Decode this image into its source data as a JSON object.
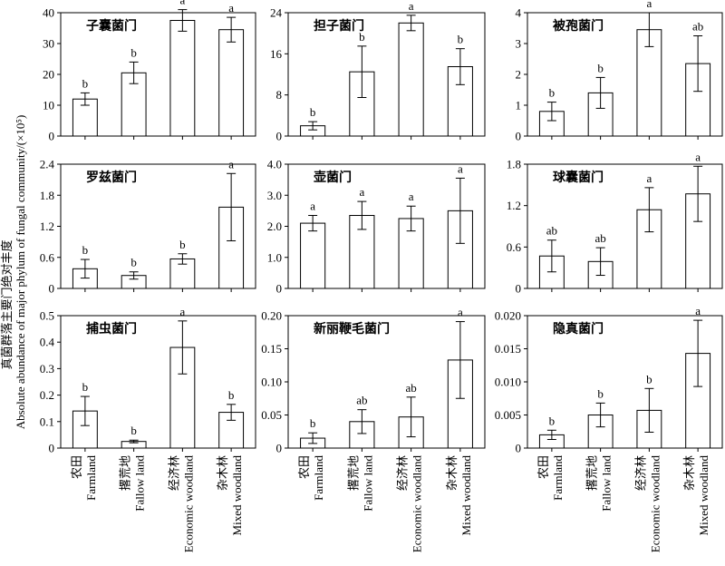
{
  "figure": {
    "ylabel_cn": "真菌群落主要门绝对丰度",
    "ylabel_en": "Absolute abundance of major phylum of fungal community/(×10⁵)",
    "x_categories": [
      {
        "cn": "农田",
        "en": "Farmland"
      },
      {
        "cn": "撂荒地",
        "en": "Fallow land"
      },
      {
        "cn": "经济林",
        "en": "Economic woodland"
      },
      {
        "cn": "杂木林",
        "en": "Mixed woodland"
      }
    ],
    "x_label_columns": [
      0,
      1,
      2
    ]
  },
  "chart_data": [
    {
      "type": "bar",
      "title": "子囊菌门",
      "ylim": [
        0,
        40
      ],
      "ticks": [
        "0",
        "10",
        "20",
        "30",
        "40"
      ],
      "values": [
        12,
        20.5,
        37.5,
        34.5
      ],
      "errors": [
        2,
        3.5,
        3.5,
        4
      ],
      "letters": [
        "b",
        "b",
        "a",
        "a"
      ]
    },
    {
      "type": "bar",
      "title": "担子菌门",
      "ylim": [
        0,
        24
      ],
      "ticks": [
        "0",
        "8",
        "16",
        "24"
      ],
      "values": [
        2,
        12.5,
        22,
        13.5
      ],
      "errors": [
        0.8,
        5,
        1.5,
        3.5
      ],
      "letters": [
        "b",
        "b",
        "a",
        "b"
      ]
    },
    {
      "type": "bar",
      "title": "被孢菌门",
      "ylim": [
        0,
        4
      ],
      "ticks": [
        "0",
        "1",
        "2",
        "3",
        "4"
      ],
      "values": [
        0.8,
        1.4,
        3.45,
        2.35
      ],
      "errors": [
        0.3,
        0.5,
        0.55,
        0.9
      ],
      "letters": [
        "b",
        "b",
        "a",
        "ab"
      ]
    },
    {
      "type": "bar",
      "title": "罗兹菌门",
      "ylim": [
        0,
        2.4
      ],
      "ticks": [
        "0",
        "0.6",
        "1.2",
        "1.8",
        "2.4"
      ],
      "values": [
        0.38,
        0.25,
        0.57,
        1.57
      ],
      "errors": [
        0.18,
        0.07,
        0.1,
        0.65
      ],
      "letters": [
        "b",
        "b",
        "b",
        "a"
      ]
    },
    {
      "type": "bar",
      "title": "壶菌门",
      "ylim": [
        0,
        4
      ],
      "ticks": [
        "0",
        "1.0",
        "2.0",
        "3.0",
        "4.0"
      ],
      "values": [
        2.1,
        2.35,
        2.25,
        2.5
      ],
      "errors": [
        0.25,
        0.45,
        0.4,
        1.05
      ],
      "letters": [
        "a",
        "a",
        "a",
        "a"
      ]
    },
    {
      "type": "bar",
      "title": "球囊菌门",
      "ylim": [
        0,
        1.8
      ],
      "ticks": [
        "0",
        "0.6",
        "1.2",
        "1.8"
      ],
      "values": [
        0.47,
        0.39,
        1.14,
        1.37
      ],
      "errors": [
        0.23,
        0.2,
        0.32,
        0.4
      ],
      "letters": [
        "ab",
        "ab",
        "a",
        "a"
      ]
    },
    {
      "type": "bar",
      "title": "捕虫菌门",
      "ylim": [
        0,
        0.5
      ],
      "ticks": [
        "0",
        "0.1",
        "0.2",
        "0.3",
        "0.4",
        "0.5"
      ],
      "values": [
        0.14,
        0.025,
        0.38,
        0.135
      ],
      "errors": [
        0.055,
        0.005,
        0.1,
        0.03
      ],
      "letters": [
        "b",
        "b",
        "a",
        "b"
      ]
    },
    {
      "type": "bar",
      "title": "新丽鞭毛菌门",
      "ylim": [
        0,
        0.2
      ],
      "ticks": [
        "0",
        "0.05",
        "0.10",
        "0.15",
        "0.20"
      ],
      "values": [
        0.015,
        0.04,
        0.047,
        0.133
      ],
      "errors": [
        0.008,
        0.018,
        0.03,
        0.058
      ],
      "letters": [
        "b",
        "ab",
        "ab",
        "a"
      ]
    },
    {
      "type": "bar",
      "title": "隐真菌门",
      "ylim": [
        0,
        0.02
      ],
      "ticks": [
        "0",
        "0.005",
        "0.010",
        "0.015",
        "0.020"
      ],
      "values": [
        0.002,
        0.005,
        0.0057,
        0.0143
      ],
      "errors": [
        0.0007,
        0.0018,
        0.0033,
        0.005
      ],
      "letters": [
        "b",
        "b",
        "b",
        "a"
      ]
    }
  ]
}
